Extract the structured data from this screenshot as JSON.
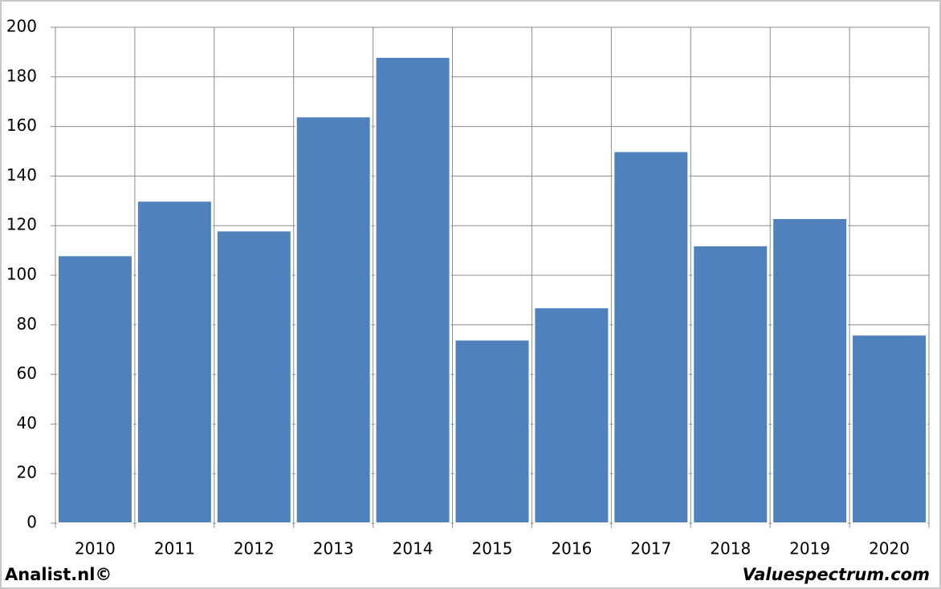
{
  "chart_data": {
    "type": "bar",
    "categories": [
      "2010",
      "2011",
      "2012",
      "2013",
      "2014",
      "2015",
      "2016",
      "2017",
      "2018",
      "2019",
      "2020"
    ],
    "values": [
      108,
      130,
      118,
      164,
      188,
      74,
      87,
      150,
      112,
      123,
      76
    ],
    "color": "#4f81bd",
    "ylim": [
      0,
      200
    ],
    "yticks": [
      0,
      20,
      40,
      60,
      80,
      100,
      120,
      140,
      160,
      180,
      200
    ],
    "grid": true
  },
  "footer": {
    "left": "Analist.nl©",
    "right": "Valuespectrum.com"
  }
}
